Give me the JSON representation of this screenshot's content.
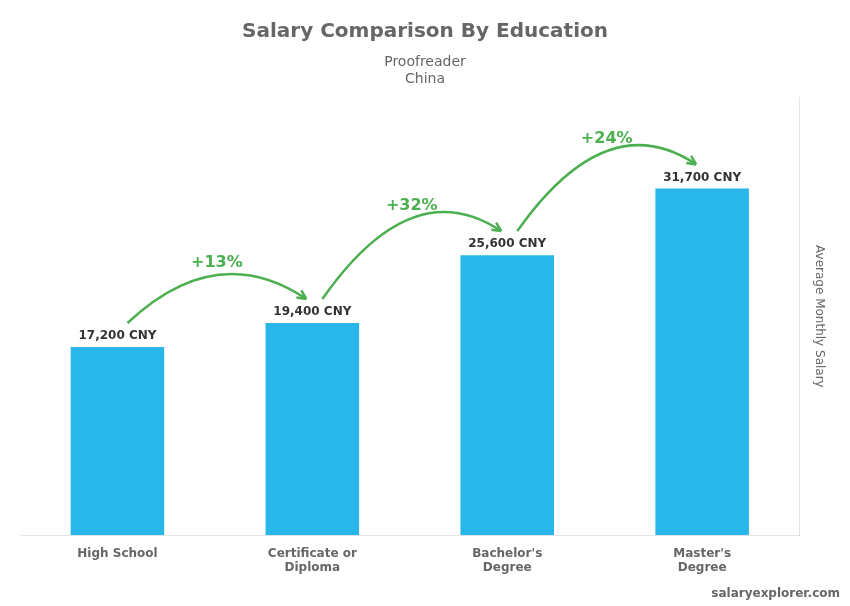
{
  "chart_data": {
    "type": "bar",
    "title": "Salary Comparison By Education",
    "subtitle": [
      "Proofreader",
      "China"
    ],
    "source": "salaryexplorer.com",
    "ylabel": "Average Monthly Salary",
    "categories": [
      "High School",
      "Certificate or\nDiploma",
      "Bachelor's\nDegree",
      "Master's\nDegree"
    ],
    "values": [
      17200,
      19400,
      25600,
      31700
    ],
    "value_labels": [
      "17,200 CNY",
      "19,400 CNY",
      "25,600 CNY",
      "31,700 CNY"
    ],
    "data_labels": true,
    "color": "#29b6e8",
    "ylim": [
      0,
      40000
    ],
    "grid": false,
    "tick_labels": "x",
    "annotations": [
      {
        "text": "+13%",
        "from": "High School",
        "to": "Certificate or\nDiploma"
      },
      {
        "text": "+32%",
        "from": "Certificate or\nDiploma",
        "to": "Bachelor's\nDegree"
      },
      {
        "text": "+24%",
        "from": "Bachelor's\nDegree",
        "to": "Master's\nDegree"
      }
    ]
  }
}
